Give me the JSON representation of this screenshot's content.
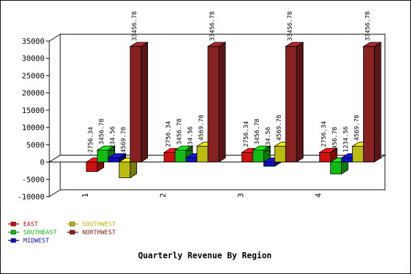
{
  "chart_data": {
    "type": "bar",
    "title": "Quarterly Revenue By Region",
    "xlabel": "",
    "ylabel": "",
    "categories": [
      "1",
      "2",
      "3",
      "4"
    ],
    "ylim": [
      -10000,
      35000
    ],
    "yticks": [
      -10000,
      -5000,
      0,
      5000,
      10000,
      15000,
      20000,
      25000,
      30000,
      35000
    ],
    "grid": false,
    "legend_position": "bottom-left",
    "series": [
      {
        "name": "EAST",
        "color": "#cc1111",
        "values": [
          -2756.34,
          2756.34,
          2756.34,
          2756.34
        ]
      },
      {
        "name": "SOUTHEAST",
        "color": "#11bb11",
        "values": [
          3456.78,
          3456.78,
          3456.78,
          -3456.78
        ]
      },
      {
        "name": "MIDWEST",
        "color": "#1111bb",
        "values": [
          1234.56,
          1234.56,
          -1234.56,
          1234.56
        ]
      },
      {
        "name": "SOUTHWEST",
        "color": "#bbbb11",
        "values": [
          -4569.78,
          4569.78,
          4569.78,
          4569.78
        ]
      },
      {
        "name": "NORTHWEST",
        "color": "#882222",
        "values": [
          33456.78,
          33456.78,
          33456.78,
          33456.78
        ]
      }
    ],
    "data_labels": [
      [
        "-2756.34",
        "3456.78",
        "1234.56",
        "-4569.78",
        "33456.78"
      ],
      [
        "2756.34",
        "3456.78",
        "1234.56",
        "4569.78",
        "33456.78"
      ],
      [
        "2756.34",
        "3456.78",
        "-1234.56",
        "4569.78",
        "33456.78"
      ],
      [
        "2756.34",
        "-3456.78",
        "1234.56",
        "4569.78",
        "33456.78"
      ]
    ],
    "ytick_labels": [
      "-10000",
      "-5000",
      "0",
      "5000",
      "10000",
      "15000",
      "20000",
      "25000",
      "30000",
      "35000"
    ]
  }
}
